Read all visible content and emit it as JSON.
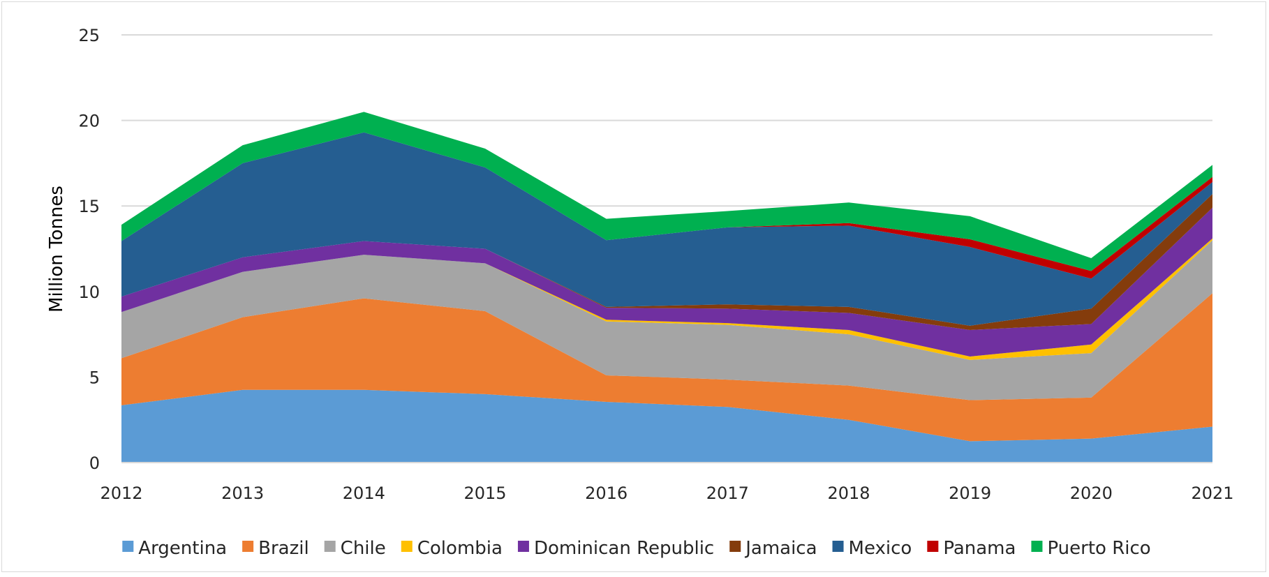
{
  "chart_data": {
    "type": "area",
    "stacked": true,
    "title": "",
    "xlabel": "",
    "ylabel": "Million Tonnes",
    "ylim": [
      0,
      25
    ],
    "yticks": [
      0,
      5,
      10,
      15,
      20,
      25
    ],
    "grid": true,
    "legend_position": "bottom",
    "categories": [
      "2012",
      "2013",
      "2014",
      "2015",
      "2016",
      "2017",
      "2018",
      "2019",
      "2020",
      "2021"
    ],
    "series": [
      {
        "name": "Argentina",
        "color": "#5b9bd5",
        "values": [
          3.35,
          4.25,
          4.25,
          4.0,
          3.55,
          3.25,
          2.5,
          1.25,
          1.4,
          2.1
        ]
      },
      {
        "name": "Brazil",
        "color": "#ed7d31",
        "values": [
          2.75,
          4.25,
          5.35,
          4.85,
          1.55,
          1.6,
          2.0,
          2.4,
          2.4,
          7.8
        ]
      },
      {
        "name": "Chile",
        "color": "#a5a5a5",
        "values": [
          2.7,
          2.65,
          2.55,
          2.8,
          3.15,
          3.2,
          3.0,
          2.35,
          2.6,
          3.1
        ]
      },
      {
        "name": "Colombia",
        "color": "#ffc000",
        "values": [
          0.0,
          0.0,
          0.0,
          0.0,
          0.1,
          0.1,
          0.25,
          0.2,
          0.5,
          0.1
        ]
      },
      {
        "name": "Dominican Republic",
        "color": "#7030a0",
        "values": [
          0.9,
          0.85,
          0.8,
          0.85,
          0.7,
          0.85,
          1.0,
          1.55,
          1.2,
          1.8
        ]
      },
      {
        "name": "Jamaica",
        "color": "#843c0c",
        "values": [
          0.0,
          0.0,
          0.0,
          0.0,
          0.05,
          0.25,
          0.35,
          0.25,
          0.9,
          0.8
        ]
      },
      {
        "name": "Mexico",
        "color": "#255e91",
        "values": [
          3.25,
          5.5,
          6.35,
          4.75,
          3.9,
          4.5,
          4.75,
          4.6,
          1.75,
          0.7
        ]
      },
      {
        "name": "Panama",
        "color": "#c00000",
        "values": [
          0.0,
          0.0,
          0.0,
          0.0,
          0.0,
          0.0,
          0.15,
          0.45,
          0.45,
          0.3
        ]
      },
      {
        "name": "Puerto Rico",
        "color": "#00b050",
        "values": [
          0.95,
          1.05,
          1.2,
          1.1,
          1.25,
          0.95,
          1.2,
          1.35,
          0.75,
          0.7
        ]
      }
    ]
  }
}
